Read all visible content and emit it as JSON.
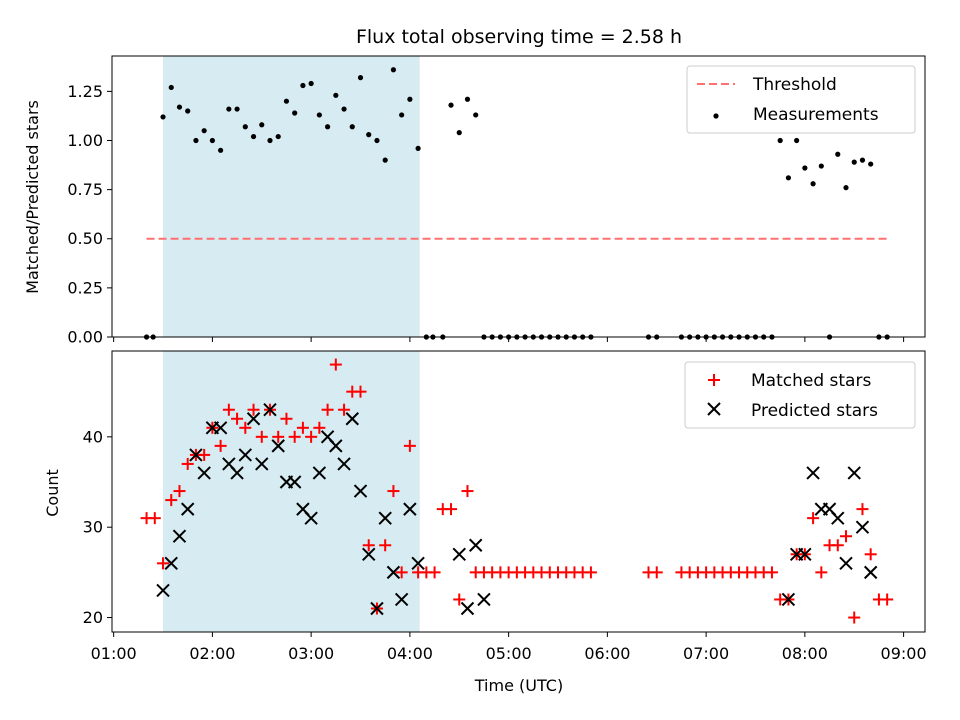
{
  "chart_data": [
    {
      "type": "scatter",
      "title": "Flux total observing time = 2.58 h",
      "xlabel": "",
      "ylabel": "Matched/Predicted stars",
      "ylim": [
        0,
        1.43
      ],
      "yticks": [
        "0.00",
        "0.25",
        "0.50",
        "0.75",
        "1.00",
        "1.25"
      ],
      "legend_position": "top-right",
      "shaded_interval": {
        "start": "01:30",
        "end": "04:06",
        "color": "#add8e6"
      },
      "threshold": {
        "name": "Threshold",
        "y": 0.5,
        "x_start": "01:20",
        "x_end": "08:50",
        "color": "#ff7070",
        "style": "dashed"
      },
      "series": [
        {
          "name": "Measurements",
          "color": "#000000",
          "marker": "dot",
          "x": [
            "01:20",
            "01:24",
            "01:30",
            "01:35",
            "01:40",
            "01:45",
            "01:50",
            "01:55",
            "02:00",
            "02:05",
            "02:10",
            "02:15",
            "02:20",
            "02:25",
            "02:30",
            "02:35",
            "02:40",
            "02:45",
            "02:50",
            "02:55",
            "03:00",
            "03:05",
            "03:10",
            "03:15",
            "03:20",
            "03:25",
            "03:30",
            "03:35",
            "03:40",
            "03:45",
            "03:50",
            "03:55",
            "04:00",
            "04:05",
            "04:10",
            "04:14",
            "04:20",
            "04:25",
            "04:30",
            "04:35",
            "04:40",
            "04:45",
            "04:50",
            "04:55",
            "05:00",
            "05:05",
            "05:10",
            "05:15",
            "05:20",
            "05:25",
            "05:30",
            "05:35",
            "05:40",
            "05:45",
            "05:50",
            "06:25",
            "06:30",
            "06:45",
            "06:50",
            "06:55",
            "07:00",
            "07:05",
            "07:10",
            "07:15",
            "07:20",
            "07:25",
            "07:30",
            "07:35",
            "07:40",
            "07:45",
            "07:50",
            "07:55",
            "08:00",
            "08:05",
            "08:10",
            "08:15",
            "08:20",
            "08:25",
            "08:30",
            "08:35",
            "08:40",
            "08:45",
            "08:50"
          ],
          "y": [
            0.0,
            0.0,
            1.12,
            1.27,
            1.17,
            1.15,
            1.0,
            1.05,
            1.0,
            0.95,
            1.16,
            1.16,
            1.07,
            1.02,
            1.08,
            1.0,
            1.02,
            1.2,
            1.14,
            1.28,
            1.29,
            1.13,
            1.07,
            1.23,
            1.16,
            1.07,
            1.32,
            1.03,
            1.0,
            0.9,
            1.36,
            1.13,
            1.21,
            0.96,
            0.0,
            0.0,
            0.0,
            1.18,
            1.04,
            1.21,
            1.13,
            0.0,
            0.0,
            0.0,
            0.0,
            0.0,
            0.0,
            0.0,
            0.0,
            0.0,
            0.0,
            0.0,
            0.0,
            0.0,
            0.0,
            0.0,
            0.0,
            0.0,
            0.0,
            0.0,
            0.0,
            0.0,
            0.0,
            0.0,
            0.0,
            0.0,
            0.0,
            0.0,
            0.0,
            1.0,
            0.81,
            1.0,
            0.86,
            0.78,
            0.87,
            0.0,
            0.93,
            0.76,
            0.89,
            0.9,
            0.88,
            0.0,
            0.0
          ]
        }
      ]
    },
    {
      "type": "scatter",
      "title": "",
      "xlabel": "Time (UTC)",
      "ylabel": "Count",
      "ylim": [
        18.4,
        49.5
      ],
      "yticks": [
        "20",
        "30",
        "40"
      ],
      "xticks": [
        "01:00",
        "02:00",
        "03:00",
        "04:00",
        "05:00",
        "06:00",
        "07:00",
        "08:00",
        "09:00"
      ],
      "legend_position": "top-right",
      "shaded_interval": {
        "start": "01:30",
        "end": "04:06",
        "color": "#add8e6"
      },
      "series": [
        {
          "name": "Matched stars",
          "color": "#ff0000",
          "marker": "plus",
          "x": [
            "01:20",
            "01:25",
            "01:30",
            "01:35",
            "01:40",
            "01:45",
            "01:50",
            "01:55",
            "02:00",
            "02:05",
            "02:10",
            "02:15",
            "02:20",
            "02:25",
            "02:30",
            "02:35",
            "02:40",
            "02:45",
            "02:50",
            "02:55",
            "03:00",
            "03:05",
            "03:10",
            "03:15",
            "03:20",
            "03:25",
            "03:30",
            "03:35",
            "03:40",
            "03:45",
            "03:50",
            "03:55",
            "04:00",
            "04:05",
            "04:10",
            "04:15",
            "04:20",
            "04:25",
            "04:30",
            "04:35",
            "04:40",
            "04:45",
            "04:50",
            "04:55",
            "05:00",
            "05:05",
            "05:10",
            "05:15",
            "05:20",
            "05:25",
            "05:30",
            "05:35",
            "05:40",
            "05:45",
            "05:50",
            "06:25",
            "06:30",
            "06:45",
            "06:50",
            "06:55",
            "07:00",
            "07:05",
            "07:10",
            "07:15",
            "07:20",
            "07:25",
            "07:30",
            "07:35",
            "07:40",
            "07:45",
            "07:50",
            "07:55",
            "08:00",
            "08:05",
            "08:10",
            "08:15",
            "08:20",
            "08:25",
            "08:30",
            "08:35",
            "08:40",
            "08:45",
            "08:50"
          ],
          "y": [
            31,
            31,
            26,
            33,
            34,
            37,
            38,
            38,
            41,
            39,
            43,
            42,
            41,
            43,
            40,
            43,
            40,
            42,
            40,
            41,
            40,
            41,
            43,
            48,
            43,
            45,
            45,
            28,
            21,
            28,
            34,
            25,
            39,
            25,
            25,
            25,
            32,
            32,
            22,
            34,
            25,
            25,
            25,
            25,
            25,
            25,
            25,
            25,
            25,
            25,
            25,
            25,
            25,
            25,
            25,
            25,
            25,
            25,
            25,
            25,
            25,
            25,
            25,
            25,
            25,
            25,
            25,
            25,
            25,
            22,
            22,
            27,
            27,
            31,
            25,
            28,
            28,
            29,
            20,
            32,
            27,
            22,
            22
          ]
        },
        {
          "name": "Predicted stars",
          "color": "#000000",
          "marker": "x",
          "x": [
            "01:30",
            "01:35",
            "01:40",
            "01:45",
            "01:50",
            "01:55",
            "02:00",
            "02:05",
            "02:10",
            "02:15",
            "02:20",
            "02:25",
            "02:30",
            "02:35",
            "02:40",
            "02:45",
            "02:50",
            "02:55",
            "03:00",
            "03:05",
            "03:10",
            "03:15",
            "03:20",
            "03:25",
            "03:30",
            "03:35",
            "03:40",
            "03:45",
            "03:50",
            "03:55",
            "04:00",
            "04:05",
            "04:30",
            "04:35",
            "04:40",
            "04:45",
            "07:50",
            "07:55",
            "08:00",
            "08:05",
            "08:10",
            "08:15",
            "08:20",
            "08:25",
            "08:30",
            "08:35",
            "08:40"
          ],
          "y": [
            23,
            26,
            29,
            32,
            38,
            36,
            41,
            41,
            37,
            36,
            38,
            42,
            37,
            43,
            39,
            35,
            35,
            32,
            31,
            36,
            40,
            39,
            37,
            42,
            34,
            27,
            21,
            31,
            25,
            22,
            32,
            26,
            27,
            21,
            28,
            22,
            22,
            27,
            27,
            36,
            32,
            32,
            31,
            26,
            36,
            30,
            25
          ]
        }
      ]
    }
  ],
  "legend": {
    "threshold_label": "Threshold",
    "measurements_label": "Measurements",
    "matched_label": "Matched stars",
    "predicted_label": "Predicted stars"
  }
}
